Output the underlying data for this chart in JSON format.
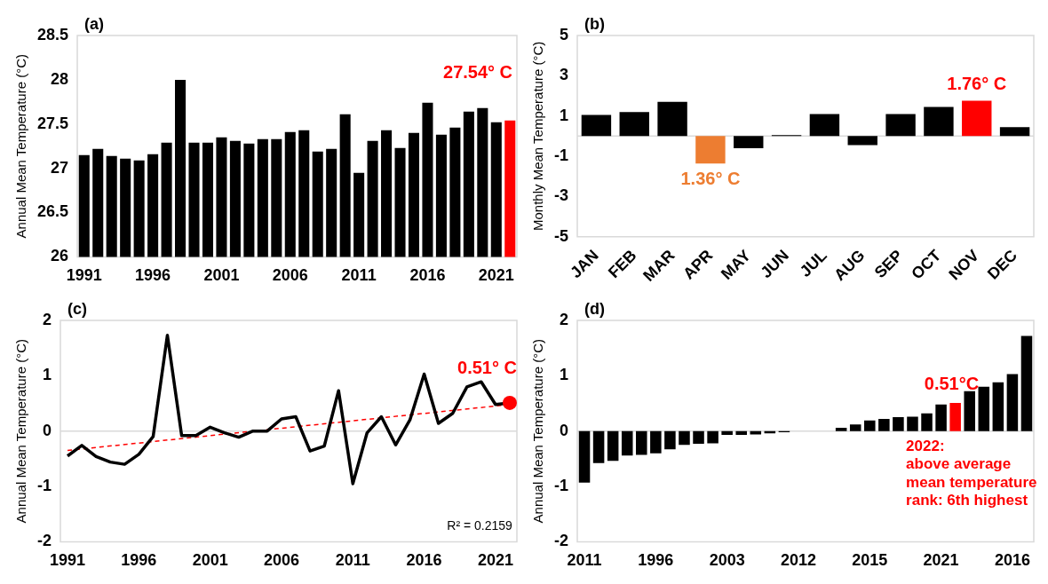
{
  "chart_data": [
    {
      "type": "bar",
      "title": "(a)",
      "ylabel": "Annual Mean Temperature (°C)",
      "categories": [
        "1991",
        null,
        null,
        null,
        null,
        "1996",
        null,
        null,
        null,
        null,
        "2001",
        null,
        null,
        null,
        null,
        "2006",
        null,
        null,
        null,
        null,
        "2011",
        null,
        null,
        null,
        null,
        "2016",
        null,
        null,
        null,
        null,
        "2021",
        null
      ],
      "values": [
        27.15,
        27.22,
        27.14,
        27.11,
        27.09,
        27.16,
        27.29,
        28.0,
        27.29,
        27.29,
        27.35,
        27.31,
        27.28,
        27.33,
        27.33,
        27.41,
        27.43,
        27.19,
        27.22,
        27.61,
        26.95,
        27.31,
        27.43,
        27.23,
        27.4,
        27.74,
        27.38,
        27.46,
        27.64,
        27.68,
        27.52,
        27.54
      ],
      "colors": [
        "#000000",
        "#000000",
        "#000000",
        "#000000",
        "#000000",
        "#000000",
        "#000000",
        "#000000",
        "#000000",
        "#000000",
        "#000000",
        "#000000",
        "#000000",
        "#000000",
        "#000000",
        "#000000",
        "#000000",
        "#000000",
        "#000000",
        "#000000",
        "#000000",
        "#000000",
        "#000000",
        "#000000",
        "#000000",
        "#000000",
        "#000000",
        "#000000",
        "#000000",
        "#000000",
        "#000000",
        "#ff0000"
      ],
      "ylim": [
        26,
        28.5
      ],
      "yticks": [
        26,
        26.5,
        27,
        27.5,
        28,
        28.5
      ],
      "grid": false,
      "legend": false,
      "annotations": [
        "27.54° C"
      ]
    },
    {
      "type": "bar",
      "title": "(b)",
      "ylabel": "Monthly Mean Temperature (°C)",
      "categories": [
        "JAN",
        "FEB",
        "MAR",
        "APR",
        "MAY",
        "JUN",
        "JUL",
        "AUG",
        "SEP",
        "OCT",
        "NOV",
        "DEC"
      ],
      "values": [
        1.05,
        1.2,
        1.7,
        -1.36,
        -0.6,
        0.05,
        1.1,
        -0.45,
        1.1,
        1.45,
        1.76,
        0.45
      ],
      "colors": [
        "#000000",
        "#000000",
        "#000000",
        "#ed7d31",
        "#000000",
        "#000000",
        "#000000",
        "#000000",
        "#000000",
        "#000000",
        "#ff0000",
        "#000000"
      ],
      "ylim": [
        -5,
        5
      ],
      "yticks": [
        -5,
        -3,
        -1,
        1,
        3,
        5
      ],
      "grid": false,
      "legend": false,
      "ref_lines": [
        {
          "axis": "y",
          "value": 0,
          "color": "#d9d9d9"
        }
      ],
      "annotations": [
        {
          "text": "1.36° C",
          "x": "APR",
          "y": -1.36
        },
        {
          "text": "1.76° C",
          "x": "NOV",
          "y": 1.76
        }
      ]
    },
    {
      "type": "line",
      "title": "(c)",
      "ylabel": "Annual Mean Temperature (°C)",
      "x": [
        1991,
        1992,
        1993,
        1994,
        1995,
        1996,
        1997,
        1998,
        1999,
        2000,
        2001,
        2002,
        2003,
        2004,
        2005,
        2006,
        2007,
        2008,
        2009,
        2010,
        2011,
        2012,
        2013,
        2014,
        2015,
        2016,
        2017,
        2018,
        2019,
        2020,
        2021,
        2022
      ],
      "series": [
        {
          "color": "#000000",
          "values": [
            -0.45,
            -0.26,
            -0.46,
            -0.56,
            -0.6,
            -0.42,
            -0.1,
            1.73,
            -0.08,
            -0.08,
            0.07,
            -0.03,
            -0.11,
            0.0,
            0.0,
            0.22,
            0.26,
            -0.36,
            -0.27,
            0.73,
            -0.95,
            -0.03,
            0.26,
            -0.25,
            0.2,
            1.03,
            0.14,
            0.32,
            0.8,
            0.89,
            0.48,
            0.51
          ]
        },
        {
          "type": "line",
          "color": "#ff0000",
          "line_style": "dashed",
          "values": [
            -0.35,
            null,
            null,
            null,
            null,
            null,
            null,
            null,
            null,
            null,
            null,
            null,
            null,
            null,
            null,
            null,
            null,
            null,
            null,
            null,
            null,
            null,
            null,
            null,
            null,
            null,
            null,
            null,
            null,
            null,
            null,
            0.48
          ]
        },
        {
          "type": "scatter",
          "color": "#ff0000",
          "marker": "circle",
          "values": [
            null,
            null,
            null,
            null,
            null,
            null,
            null,
            null,
            null,
            null,
            null,
            null,
            null,
            null,
            null,
            null,
            null,
            null,
            null,
            null,
            null,
            null,
            null,
            null,
            null,
            null,
            null,
            null,
            null,
            null,
            null,
            0.51
          ]
        }
      ],
      "marker": "none",
      "line_style": "solid",
      "xlim": [
        1990.5,
        2022.5
      ],
      "xticks": [
        1991,
        1996,
        2001,
        2006,
        2011,
        2016,
        2021
      ],
      "ylim": [
        -2,
        2
      ],
      "yticks": [
        -2,
        -1,
        0,
        1,
        2
      ],
      "grid": false,
      "legend": false,
      "ref_lines": [
        {
          "axis": "y",
          "value": 0,
          "color": "#d9d9d9"
        }
      ],
      "annotations": [
        {
          "text": "0.51° C",
          "x": 2022,
          "y": 0.51
        },
        "R² = 0.2159"
      ]
    },
    {
      "type": "bar",
      "title": "(d)",
      "ylabel": "Annual Mean Temperature (°C)",
      "categories": [
        "2011",
        null,
        null,
        null,
        null,
        "1996",
        null,
        null,
        null,
        null,
        "2003",
        null,
        null,
        null,
        null,
        "2012",
        null,
        null,
        null,
        null,
        "2015",
        null,
        null,
        null,
        null,
        "2021",
        null,
        null,
        null,
        null,
        "2016",
        null
      ],
      "values": [
        -0.93,
        -0.58,
        -0.54,
        -0.44,
        -0.43,
        -0.4,
        -0.33,
        -0.25,
        -0.23,
        -0.22,
        -0.07,
        -0.07,
        -0.06,
        -0.04,
        -0.02,
        0.0,
        0.0,
        0.0,
        0.06,
        0.12,
        0.19,
        0.22,
        0.25,
        0.26,
        0.32,
        0.48,
        0.51,
        0.72,
        0.8,
        0.88,
        1.03,
        1.72
      ],
      "colors": [
        "#000000",
        "#000000",
        "#000000",
        "#000000",
        "#000000",
        "#000000",
        "#000000",
        "#000000",
        "#000000",
        "#000000",
        "#000000",
        "#000000",
        "#000000",
        "#000000",
        "#000000",
        "#000000",
        "#000000",
        "#000000",
        "#000000",
        "#000000",
        "#000000",
        "#000000",
        "#000000",
        "#000000",
        "#000000",
        "#000000",
        "#ff0000",
        "#000000",
        "#000000",
        "#000000",
        "#000000",
        "#000000"
      ],
      "ylim": [
        -2,
        2
      ],
      "yticks": [
        -2,
        -1,
        0,
        1,
        2
      ],
      "grid": false,
      "legend": false,
      "ref_lines": [
        {
          "axis": "y",
          "value": 0,
          "color": "#d9d9d9"
        }
      ],
      "annotations": [
        "0.51°C",
        "2022:\nabove average\nmean temperature\nrank: 6th highest"
      ]
    }
  ]
}
